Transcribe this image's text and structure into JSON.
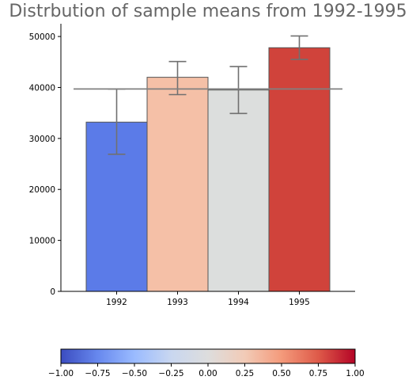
{
  "chart_data": {
    "type": "bar",
    "title": "Distrbution of sample means from 1992-1995",
    "xlabel": "",
    "ylabel": "",
    "categories": [
      "1992",
      "1993",
      "1994",
      "1995"
    ],
    "values": [
      33200,
      42000,
      39500,
      47800
    ],
    "error_low": [
      26900,
      38600,
      34900,
      45500
    ],
    "error_high": [
      39700,
      45100,
      44100,
      50100
    ],
    "bar_colors": [
      "#5b7be8",
      "#f5c0a7",
      "#dcdedd",
      "#d0433b"
    ],
    "reference_line": 39700,
    "ylim": [
      0,
      52500
    ],
    "yticks": [
      "0",
      "10000",
      "20000",
      "30000",
      "40000",
      "50000"
    ],
    "ytick_values": [
      0,
      10000,
      20000,
      30000,
      40000,
      50000
    ],
    "grid": false,
    "colorbar": {
      "range": [
        -1.0,
        1.0
      ],
      "tick_values": [
        -1.0,
        -0.75,
        -0.5,
        -0.25,
        0.0,
        0.25,
        0.5,
        0.75,
        1.0
      ],
      "tick_labels": [
        "−1.00",
        "−0.75",
        "−0.50",
        "−0.25",
        "0.00",
        "0.25",
        "0.50",
        "0.75",
        "1.00"
      ],
      "colormap": [
        "#3b4cc0",
        "#6788ee",
        "#9abbff",
        "#c9d7f0",
        "#dddddd",
        "#f2cbb7",
        "#f49a7b",
        "#de5a49",
        "#b40426"
      ]
    }
  }
}
